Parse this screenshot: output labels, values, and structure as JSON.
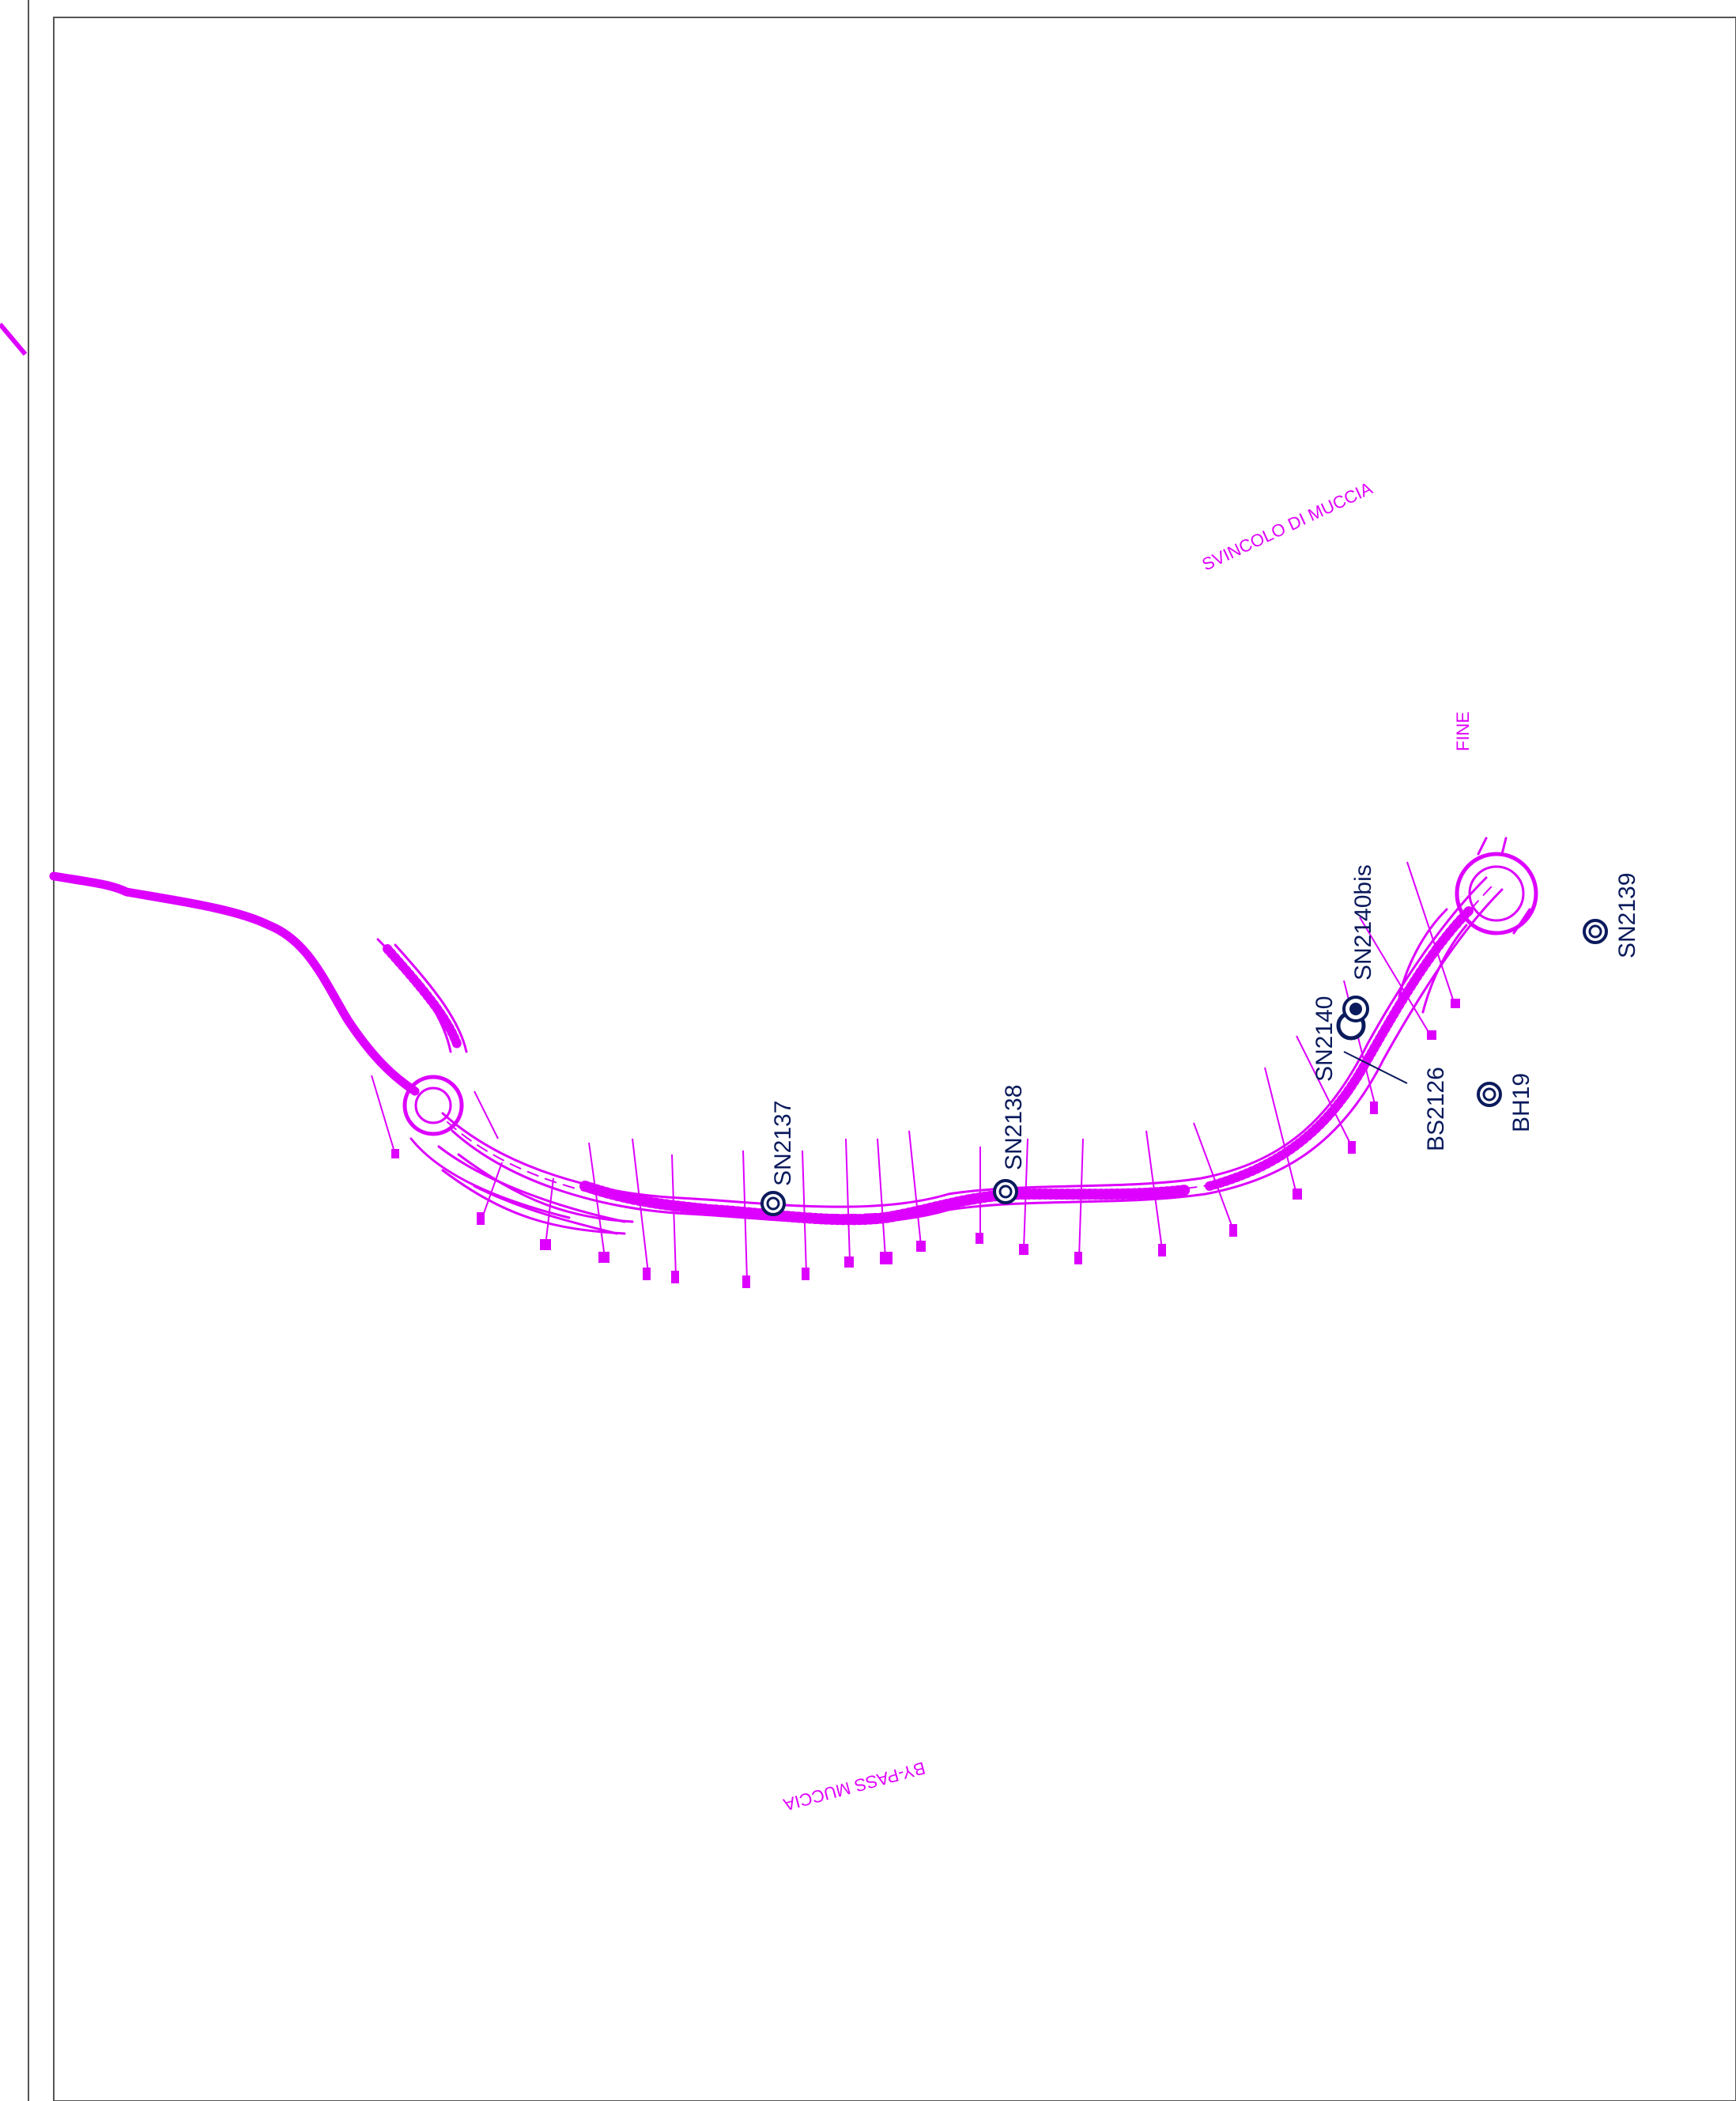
{
  "labels": {
    "svincolo": "SVINCOLO DI MUCCIA",
    "fine": "FINE",
    "bypass": "BY-PASS MUCCIA"
  },
  "boreholes": {
    "sn2137": "SN2137",
    "sn2138": "SN2138",
    "sn2140": "SN2140",
    "sn2140bis": "SN2140bis",
    "bs2126": "BS2126",
    "bh19": "BH19",
    "sn2139": "SN2139"
  },
  "colors": {
    "road": "#dd00ff",
    "borehole": "#0a1a5c",
    "frame": "#555555"
  }
}
